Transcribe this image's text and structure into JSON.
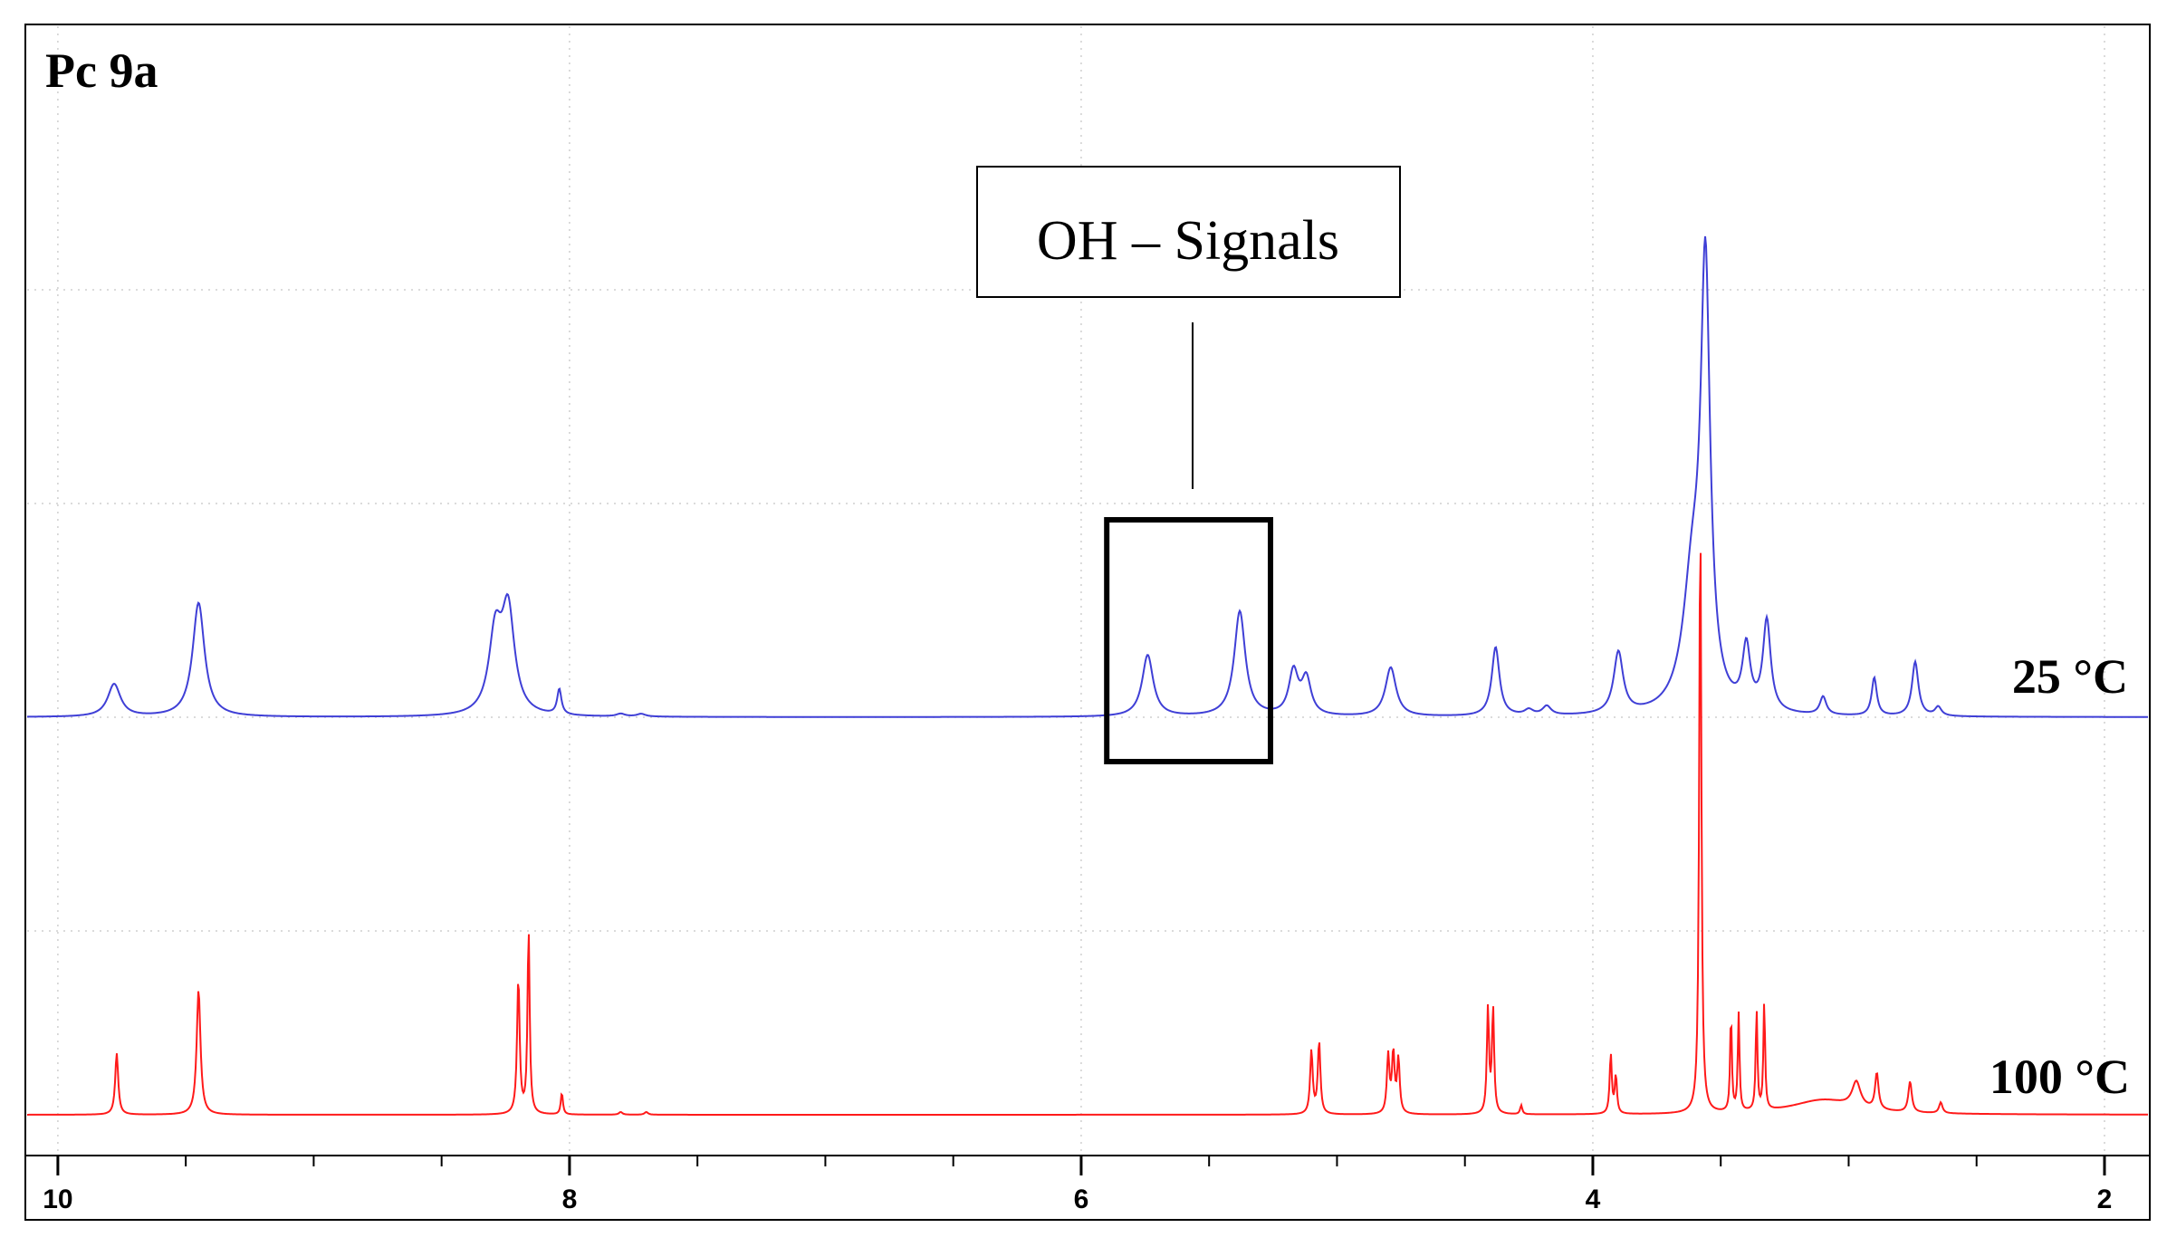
{
  "chart_data": {
    "type": "line",
    "title": "Pc 9a",
    "xlabel": "",
    "ylabel": "",
    "x_reversed": true,
    "xlim": [
      10.12,
      1.83
    ],
    "x_ticks": [
      10,
      8,
      6,
      4,
      2
    ],
    "x_tick_labels": [
      "10",
      "8",
      "6",
      "4",
      "2"
    ],
    "grid": true,
    "annotation": {
      "text": "OH – Signals",
      "highlight_range": [
        5.9,
        5.26
      ]
    },
    "series": [
      {
        "name": "25 °C",
        "color": "#3f3fd6",
        "peaks": [
          {
            "x": 9.78,
            "h": 0.18,
            "w": 0.03
          },
          {
            "x": 9.45,
            "h": 0.63,
            "w": 0.028
          },
          {
            "x": 8.29,
            "h": 0.43,
            "w": 0.03
          },
          {
            "x": 8.24,
            "h": 0.56,
            "w": 0.03
          },
          {
            "x": 8.04,
            "h": 0.14,
            "w": 0.01
          },
          {
            "x": 7.8,
            "h": 0.015,
            "w": 0.02
          },
          {
            "x": 7.72,
            "h": 0.015,
            "w": 0.02
          },
          {
            "x": 5.74,
            "h": 0.34,
            "w": 0.026
          },
          {
            "x": 5.38,
            "h": 0.58,
            "w": 0.026
          },
          {
            "x": 5.17,
            "h": 0.24,
            "w": 0.022
          },
          {
            "x": 5.12,
            "h": 0.2,
            "w": 0.022
          },
          {
            "x": 4.79,
            "h": 0.27,
            "w": 0.025
          },
          {
            "x": 4.38,
            "h": 0.38,
            "w": 0.018
          },
          {
            "x": 4.25,
            "h": 0.03,
            "w": 0.02
          },
          {
            "x": 4.18,
            "h": 0.05,
            "w": 0.02
          },
          {
            "x": 3.9,
            "h": 0.34,
            "w": 0.022
          },
          {
            "x": 3.61,
            "h": 0.7,
            "w": 0.045
          },
          {
            "x": 3.56,
            "h": 2.33,
            "w": 0.022
          },
          {
            "x": 3.4,
            "h": 0.34,
            "w": 0.018
          },
          {
            "x": 3.32,
            "h": 0.5,
            "w": 0.018
          },
          {
            "x": 3.1,
            "h": 0.1,
            "w": 0.015
          },
          {
            "x": 2.9,
            "h": 0.21,
            "w": 0.012
          },
          {
            "x": 2.74,
            "h": 0.3,
            "w": 0.015
          },
          {
            "x": 2.65,
            "h": 0.05,
            "w": 0.015
          }
        ]
      },
      {
        "name": "100 °C",
        "color": "#ff1a1a",
        "peaks": [
          {
            "x": 9.77,
            "h": 0.34,
            "w": 0.007
          },
          {
            "x": 9.45,
            "h": 0.69,
            "w": 0.009
          },
          {
            "x": 8.2,
            "h": 0.75,
            "w": 0.006
          },
          {
            "x": 8.16,
            "h": 1.02,
            "w": 0.005
          },
          {
            "x": 8.03,
            "h": 0.12,
            "w": 0.005
          },
          {
            "x": 7.8,
            "h": 0.015,
            "w": 0.008
          },
          {
            "x": 7.7,
            "h": 0.015,
            "w": 0.008
          },
          {
            "x": 5.1,
            "h": 0.35,
            "w": 0.006
          },
          {
            "x": 5.07,
            "h": 0.4,
            "w": 0.006
          },
          {
            "x": 4.8,
            "h": 0.32,
            "w": 0.006
          },
          {
            "x": 4.78,
            "h": 0.33,
            "w": 0.006
          },
          {
            "x": 4.76,
            "h": 0.3,
            "w": 0.006
          },
          {
            "x": 4.41,
            "h": 0.58,
            "w": 0.005
          },
          {
            "x": 4.39,
            "h": 0.58,
            "w": 0.005
          },
          {
            "x": 4.28,
            "h": 0.05,
            "w": 0.005
          },
          {
            "x": 3.93,
            "h": 0.33,
            "w": 0.005
          },
          {
            "x": 3.91,
            "h": 0.21,
            "w": 0.005
          },
          {
            "x": 3.58,
            "h": 3.33,
            "w": 0.005
          },
          {
            "x": 3.46,
            "h": 0.54,
            "w": 0.004
          },
          {
            "x": 3.43,
            "h": 0.54,
            "w": 0.004
          },
          {
            "x": 3.36,
            "h": 0.56,
            "w": 0.004
          },
          {
            "x": 3.33,
            "h": 0.6,
            "w": 0.004
          },
          {
            "x": 3.1,
            "h": 0.08,
            "w": 0.15
          },
          {
            "x": 2.97,
            "h": 0.14,
            "w": 0.02
          },
          {
            "x": 2.89,
            "h": 0.2,
            "w": 0.008
          },
          {
            "x": 2.76,
            "h": 0.17,
            "w": 0.008
          },
          {
            "x": 2.64,
            "h": 0.06,
            "w": 0.008
          }
        ]
      }
    ]
  }
}
